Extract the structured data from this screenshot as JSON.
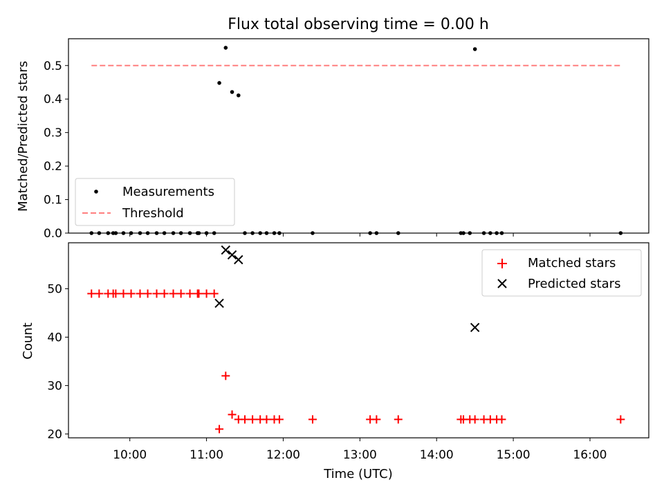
{
  "chart_data": [
    {
      "type": "scatter",
      "title": "Flux total observing time = 0.00 h",
      "ylabel": "Matched/Predicted stars",
      "xlabel": "",
      "xlim": [
        "09:12",
        "16:46"
      ],
      "ylim": [
        0,
        0.58
      ],
      "grid": false,
      "legend_position": "lower-left",
      "yticks": [
        0.0,
        0.1,
        0.2,
        0.3,
        0.4,
        0.5
      ],
      "ytick_labels": [
        "0.0",
        "0.1",
        "0.2",
        "0.3",
        "0.4",
        "0.5"
      ],
      "series": [
        {
          "name": "Measurements",
          "color": "#000000",
          "marker": "dot",
          "points": [
            [
              "09:30",
              0
            ],
            [
              "09:36",
              0
            ],
            [
              "09:43",
              0
            ],
            [
              "09:47",
              0
            ],
            [
              "09:49",
              0
            ],
            [
              "09:55",
              0
            ],
            [
              "10:01",
              0
            ],
            [
              "10:08",
              0
            ],
            [
              "10:14",
              0
            ],
            [
              "10:21",
              0
            ],
            [
              "10:27",
              0
            ],
            [
              "10:34",
              0
            ],
            [
              "10:40",
              0
            ],
            [
              "10:47",
              0
            ],
            [
              "10:53",
              0
            ],
            [
              "10:54",
              0
            ],
            [
              "11:00",
              0
            ],
            [
              "11:06",
              0
            ],
            [
              "11:10",
              0.448
            ],
            [
              "11:15",
              0.553
            ],
            [
              "11:20",
              0.421
            ],
            [
              "11:25",
              0.411
            ],
            [
              "11:30",
              0
            ],
            [
              "11:36",
              0
            ],
            [
              "11:42",
              0
            ],
            [
              "11:47",
              0
            ],
            [
              "11:53",
              0
            ],
            [
              "11:57",
              0
            ],
            [
              "12:23",
              0
            ],
            [
              "13:08",
              0
            ],
            [
              "13:13",
              0
            ],
            [
              "13:30",
              0
            ],
            [
              "14:19",
              0
            ],
            [
              "14:21",
              0
            ],
            [
              "14:26",
              0
            ],
            [
              "14:30",
              0.549
            ],
            [
              "14:37",
              0
            ],
            [
              "14:42",
              0
            ],
            [
              "14:47",
              0
            ],
            [
              "14:51",
              0
            ],
            [
              "16:24",
              0
            ]
          ]
        },
        {
          "name": "Threshold",
          "color": "#ff7f7f",
          "style": "dashed",
          "points": [
            [
              "09:30",
              0.5
            ],
            [
              "16:24",
              0.5
            ]
          ]
        }
      ]
    },
    {
      "type": "scatter",
      "title": "",
      "ylabel": "Count",
      "xlabel": "Time (UTC)",
      "xlim": [
        "09:12",
        "16:46"
      ],
      "ylim": [
        19.2,
        59.5
      ],
      "grid": false,
      "legend_position": "upper-right",
      "yticks": [
        20,
        30,
        40,
        50
      ],
      "ytick_labels": [
        "20",
        "30",
        "40",
        "50"
      ],
      "xticks": [
        "10:00",
        "11:00",
        "12:00",
        "13:00",
        "14:00",
        "15:00",
        "16:00"
      ],
      "xtick_labels": [
        "10:00",
        "11:00",
        "12:00",
        "13:00",
        "14:00",
        "15:00",
        "16:00"
      ],
      "series": [
        {
          "name": "Matched stars",
          "color": "#ff0000",
          "marker": "plus",
          "points": [
            [
              "09:30",
              49
            ],
            [
              "09:36",
              49
            ],
            [
              "09:43",
              49
            ],
            [
              "09:47",
              49
            ],
            [
              "09:49",
              49
            ],
            [
              "09:55",
              49
            ],
            [
              "10:01",
              49
            ],
            [
              "10:08",
              49
            ],
            [
              "10:14",
              49
            ],
            [
              "10:21",
              49
            ],
            [
              "10:27",
              49
            ],
            [
              "10:34",
              49
            ],
            [
              "10:40",
              49
            ],
            [
              "10:47",
              49
            ],
            [
              "10:53",
              49
            ],
            [
              "10:54",
              49
            ],
            [
              "11:00",
              49
            ],
            [
              "11:06",
              49
            ],
            [
              "11:10",
              21
            ],
            [
              "11:15",
              32
            ],
            [
              "11:20",
              24
            ],
            [
              "11:25",
              23
            ],
            [
              "11:30",
              23
            ],
            [
              "11:36",
              23
            ],
            [
              "11:42",
              23
            ],
            [
              "11:47",
              23
            ],
            [
              "11:53",
              23
            ],
            [
              "11:57",
              23
            ],
            [
              "12:23",
              23
            ],
            [
              "13:08",
              23
            ],
            [
              "13:13",
              23
            ],
            [
              "13:30",
              23
            ],
            [
              "14:19",
              23
            ],
            [
              "14:21",
              23
            ],
            [
              "14:26",
              23
            ],
            [
              "14:30",
              23
            ],
            [
              "14:37",
              23
            ],
            [
              "14:42",
              23
            ],
            [
              "14:47",
              23
            ],
            [
              "14:51",
              23
            ],
            [
              "16:24",
              23
            ]
          ]
        },
        {
          "name": "Predicted stars",
          "color": "#000000",
          "marker": "x",
          "points": [
            [
              "11:10",
              47
            ],
            [
              "11:15",
              58
            ],
            [
              "11:20",
              57
            ],
            [
              "11:25",
              56
            ],
            [
              "14:30",
              42
            ]
          ]
        }
      ]
    }
  ]
}
